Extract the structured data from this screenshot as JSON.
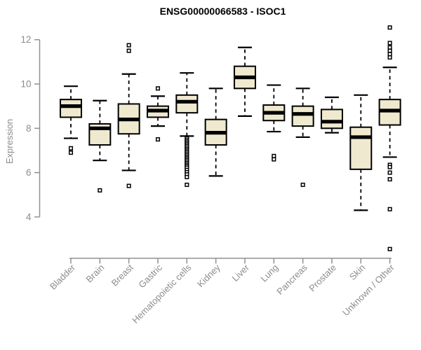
{
  "colors": {
    "background": "#ffffff",
    "box_fill": "#efe9cf",
    "box_stroke": "#000000",
    "median_stroke": "#000000",
    "outlier_stroke": "#000000",
    "outlier_fill": "#ffffff",
    "axis": "#919191",
    "tick_label": "#8c8c8c",
    "title_color": "#000000"
  },
  "chart_data": {
    "type": "boxplot",
    "title": "ENSG00000066583 - ISOC1",
    "xlabel": "",
    "ylabel": "Expression",
    "ylim": [
      4,
      12
    ],
    "yticks": [
      4,
      6,
      8,
      10,
      12
    ],
    "grid": false,
    "legend": "none",
    "categories": [
      "Bladder",
      "Brain",
      "Breast",
      "Gastric",
      "Hematopoietic cells",
      "Kidney",
      "Liver",
      "Lung",
      "Pancreas",
      "Prostate",
      "Skin",
      "Unknown / Other"
    ],
    "series": [
      {
        "name": "Bladder",
        "whisker_low": 7.55,
        "q1": 8.5,
        "median": 9.0,
        "q3": 9.3,
        "whisker_high": 9.9,
        "outliers": [
          7.1,
          6.9
        ]
      },
      {
        "name": "Brain",
        "whisker_low": 6.55,
        "q1": 7.25,
        "median": 8.0,
        "q3": 8.2,
        "whisker_high": 9.25,
        "outliers": [
          5.2
        ]
      },
      {
        "name": "Breast",
        "whisker_low": 6.1,
        "q1": 7.75,
        "median": 8.4,
        "q3": 9.1,
        "whisker_high": 10.45,
        "outliers": [
          11.75,
          11.5,
          5.4
        ]
      },
      {
        "name": "Gastric",
        "whisker_low": 8.1,
        "q1": 8.5,
        "median": 8.8,
        "q3": 9.0,
        "whisker_high": 9.45,
        "outliers": [
          9.8,
          7.5
        ]
      },
      {
        "name": "Hematopoietic cells",
        "whisker_low": 7.65,
        "q1": 8.7,
        "median": 9.2,
        "q3": 9.5,
        "whisker_high": 10.5,
        "outliers": [
          7.55,
          7.48,
          7.41,
          7.34,
          7.27,
          7.2,
          7.13,
          7.06,
          6.99,
          6.92,
          6.85,
          6.78,
          6.71,
          6.64,
          6.57,
          6.5,
          6.43,
          6.36,
          6.29,
          6.22,
          6.12,
          6.02,
          5.92,
          5.8,
          5.45
        ]
      },
      {
        "name": "Kidney",
        "whisker_low": 5.85,
        "q1": 7.25,
        "median": 7.8,
        "q3": 8.4,
        "whisker_high": 9.8,
        "outliers": []
      },
      {
        "name": "Liver",
        "whisker_low": 8.55,
        "q1": 9.8,
        "median": 10.3,
        "q3": 10.8,
        "whisker_high": 11.65,
        "outliers": []
      },
      {
        "name": "Lung",
        "whisker_low": 7.85,
        "q1": 8.35,
        "median": 8.7,
        "q3": 9.05,
        "whisker_high": 9.95,
        "outliers": [
          6.75,
          6.6
        ]
      },
      {
        "name": "Pancreas",
        "whisker_low": 7.6,
        "q1": 8.1,
        "median": 8.65,
        "q3": 9.0,
        "whisker_high": 9.8,
        "outliers": [
          5.45
        ]
      },
      {
        "name": "Prostate",
        "whisker_low": 7.8,
        "q1": 8.0,
        "median": 8.3,
        "q3": 8.85,
        "whisker_high": 9.4,
        "outliers": []
      },
      {
        "name": "Skin",
        "whisker_low": 4.3,
        "q1": 6.15,
        "median": 7.6,
        "q3": 8.05,
        "whisker_high": 9.5,
        "outliers": []
      },
      {
        "name": "Unknown / Other",
        "whisker_low": 6.7,
        "q1": 8.15,
        "median": 8.8,
        "q3": 9.3,
        "whisker_high": 10.75,
        "outliers": [
          12.55,
          11.85,
          11.65,
          11.5,
          11.35,
          11.2,
          6.35,
          6.25,
          6.0,
          5.7,
          4.35,
          2.55
        ]
      }
    ]
  }
}
